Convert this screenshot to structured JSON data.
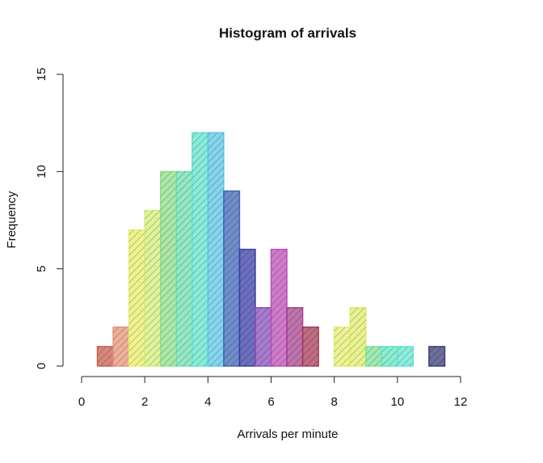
{
  "chart_data": {
    "type": "histogram",
    "title": "Histogram of arrivals",
    "xlabel": "Arrivals per minute",
    "ylabel": "Frequency",
    "bins": [
      0.5,
      1,
      1.5,
      2,
      2.5,
      3,
      3.5,
      4,
      4.5,
      5,
      5.5,
      6,
      6.5,
      7,
      7.5,
      8,
      8.5,
      9,
      9.5,
      10,
      10.5,
      11,
      11.5
    ],
    "counts": [
      1,
      2,
      7,
      8,
      10,
      10,
      12,
      12,
      9,
      6,
      3,
      6,
      3,
      2,
      0,
      2,
      3,
      1,
      1,
      1,
      0,
      1
    ],
    "colors": [
      "#c9604f",
      "#e8967a",
      "#e9ef6a",
      "#d3f07a",
      "#8fe08a",
      "#6fe0b0",
      "#62e6cc",
      "#5cc8e6",
      "#3f67b8",
      "#3b3fa8",
      "#8a4fc0",
      "#c04fb8",
      "#a84490",
      "#a83c5a",
      "#b03a40",
      "#e5ef70",
      "#e0ee6c",
      "#7ee39c",
      "#66e6c2",
      "#66e6d2",
      "#5aa8e0",
      "#3a3d78"
    ],
    "xlim": [
      0,
      12
    ],
    "ylim": [
      0,
      15
    ],
    "xticks": [
      0,
      2,
      4,
      6,
      8,
      10,
      12
    ],
    "yticks": [
      0,
      5,
      10,
      15
    ]
  }
}
